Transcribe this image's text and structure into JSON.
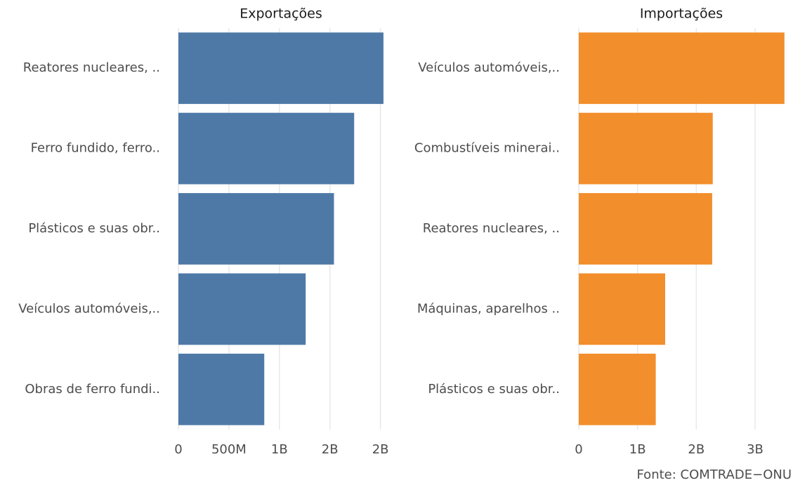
{
  "chart_data": [
    {
      "type": "bar",
      "orientation": "horizontal",
      "title": "Exportações",
      "categories": [
        "Reatores nucleares, ..",
        "Ferro fundido, ferro..",
        "Plásticos e suas obr..",
        "Veículos automóveis,..",
        "Obras de ferro fundi.."
      ],
      "values": [
        2030000000,
        1740000000,
        1540000000,
        1260000000,
        850000000
      ],
      "color": "#4e79a7",
      "xlim": [
        0,
        2100000000
      ],
      "xticks": [
        0,
        {
          "value": 500000000,
          "label": "500M"
        },
        {
          "value": 1000000000,
          "label": "1B"
        },
        {
          "value": 1500000000,
          "label": "2B"
        },
        {
          "value": 2000000000,
          "label": "2B"
        }
      ],
      "grid": true
    },
    {
      "type": "bar",
      "orientation": "horizontal",
      "title": "Importações",
      "categories": [
        "Veículos automóveis,..",
        "Combustíveis minerai..",
        "Reatores nucleares, ..",
        "Máquinas, aparelhos ..",
        "Plásticos e suas obr.."
      ],
      "values": [
        3500000000,
        2280000000,
        2270000000,
        1470000000,
        1310000000
      ],
      "color": "#f28e2b",
      "xlim": [
        0,
        3550000000
      ],
      "xticks": [
        0,
        {
          "value": 1000000000,
          "label": "1B"
        },
        {
          "value": 2000000000,
          "label": "2B"
        },
        {
          "value": 3000000000,
          "label": "3B"
        }
      ],
      "grid": true
    }
  ],
  "caption": "Fonte: COMTRADE−ONU"
}
